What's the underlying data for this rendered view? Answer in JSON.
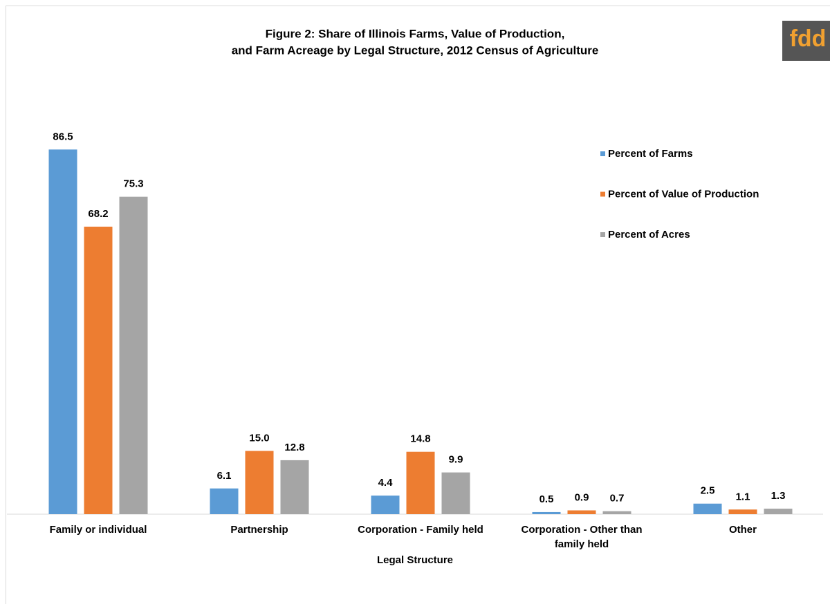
{
  "chart_data": {
    "type": "bar",
    "title": "Figure 2: Share of Illinois Farms, Value of Production,",
    "subtitle": "and Farm Acreage by Legal Structure, 2012 Census of Agriculture",
    "logo": "fdd",
    "x_label": "Legal Structure",
    "categories": [
      "Family or individual",
      "Partnership",
      "Corporation - Family held",
      "Corporation - Other than family held",
      "Other"
    ],
    "series": [
      {
        "name": "Percent of Farms",
        "color": "#5b9bd5",
        "values": [
          86.5,
          6.1,
          4.4,
          0.5,
          2.5
        ],
        "value_labels": [
          "86.5",
          "6.1",
          "4.4",
          "0.5",
          "2.5"
        ]
      },
      {
        "name": "Percent of Value of Production",
        "color": "#ed7d31",
        "values": [
          68.2,
          15,
          14.8,
          0.9,
          1.1
        ],
        "value_labels": [
          "68.2",
          "15.0",
          "14.8",
          "0.9",
          "1.1"
        ]
      },
      {
        "name": "Percent of Acres",
        "color": "#a5a5a5",
        "values": [
          75.3,
          12.8,
          9.9,
          0.7,
          1.3
        ],
        "value_labels": [
          "75.3",
          "12.8",
          "9.9",
          "0.7",
          "1.3"
        ]
      }
    ],
    "legend": "right"
  }
}
